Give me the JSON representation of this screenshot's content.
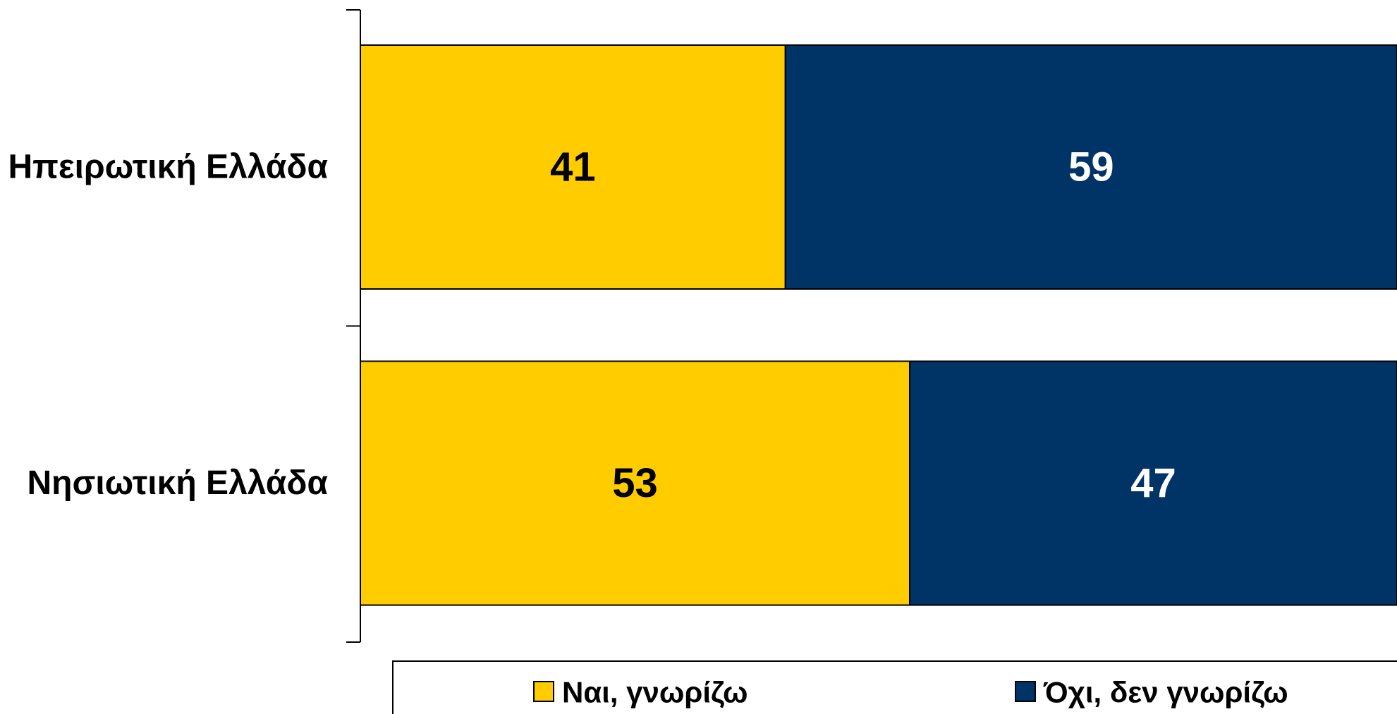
{
  "chart_data": {
    "type": "bar",
    "orientation": "horizontal",
    "stacked": true,
    "categories": [
      "Ηπειρωτική Ελλάδα",
      "Νησιωτική Ελλάδα"
    ],
    "series": [
      {
        "name": "Ναι, γνωρίζω",
        "values": [
          41,
          53
        ],
        "color": "#FFCC00",
        "label_color": "#000000"
      },
      {
        "name": "Όχι, δεν γνωρίζω",
        "values": [
          59,
          47
        ],
        "color": "#003366",
        "label_color": "#FFFFFF"
      }
    ],
    "xlim": [
      0,
      100
    ],
    "grid": false,
    "legend_position": "bottom"
  }
}
